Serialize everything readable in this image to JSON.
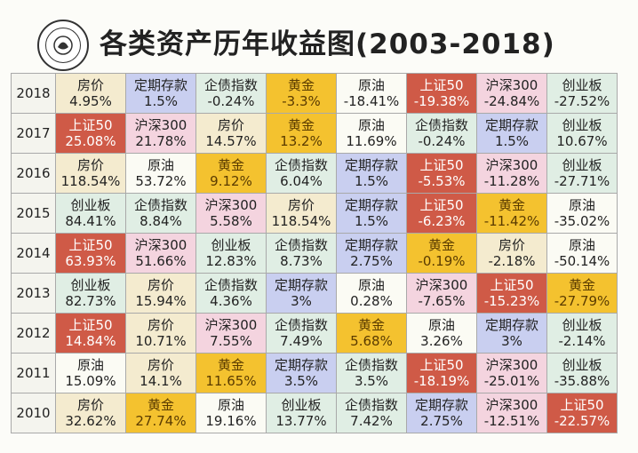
{
  "title": "各类资产历年收益图(2003-2018)",
  "assets_colors": {
    "上证50": "#cf5a47",
    "黄金": "#f4c22f",
    "定期存款": "#c9cff0",
    "沪深300": "#f4d4df",
    "原油": "#fbfbf4",
    "房价": "#f4ebcf",
    "企债指数": "#e0eee4",
    "创业板": "#e0eee4"
  },
  "chart_data": {
    "type": "table",
    "title": "各类资产历年收益图(2003-2018)",
    "rows": [
      {
        "year": "2018",
        "cells": [
          {
            "asset": "房价",
            "value": "4.95%"
          },
          {
            "asset": "定期存款",
            "value": "1.5%"
          },
          {
            "asset": "企债指数",
            "value": "-0.24%"
          },
          {
            "asset": "黄金",
            "value": "-3.3%"
          },
          {
            "asset": "原油",
            "value": "-18.41%"
          },
          {
            "asset": "上证50",
            "value": "-19.38%"
          },
          {
            "asset": "沪深300",
            "value": "-24.84%"
          },
          {
            "asset": "创业板",
            "value": "-27.52%"
          }
        ]
      },
      {
        "year": "2017",
        "cells": [
          {
            "asset": "上证50",
            "value": "25.08%"
          },
          {
            "asset": "沪深300",
            "value": "21.78%"
          },
          {
            "asset": "房价",
            "value": "14.57%"
          },
          {
            "asset": "黄金",
            "value": "13.2%"
          },
          {
            "asset": "原油",
            "value": "11.69%"
          },
          {
            "asset": "企债指数",
            "value": "-0.24%"
          },
          {
            "asset": "定期存款",
            "value": "1.5%"
          },
          {
            "asset": "创业板",
            "value": "10.67%"
          }
        ]
      },
      {
        "year": "2016",
        "cells": [
          {
            "asset": "房价",
            "value": "118.54%"
          },
          {
            "asset": "原油",
            "value": "53.72%"
          },
          {
            "asset": "黄金",
            "value": "9.12%"
          },
          {
            "asset": "企债指数",
            "value": "6.04%"
          },
          {
            "asset": "定期存款",
            "value": "1.5%"
          },
          {
            "asset": "上证50",
            "value": "-5.53%"
          },
          {
            "asset": "沪深300",
            "value": "-11.28%"
          },
          {
            "asset": "创业板",
            "value": "-27.71%"
          }
        ]
      },
      {
        "year": "2015",
        "cells": [
          {
            "asset": "创业板",
            "value": "84.41%"
          },
          {
            "asset": "企债指数",
            "value": "8.84%"
          },
          {
            "asset": "沪深300",
            "value": "5.58%"
          },
          {
            "asset": "房价",
            "value": "118.54%"
          },
          {
            "asset": "定期存款",
            "value": "1.5%"
          },
          {
            "asset": "上证50",
            "value": "-6.23%"
          },
          {
            "asset": "黄金",
            "value": "-11.42%"
          },
          {
            "asset": "原油",
            "value": "-35.02%"
          }
        ]
      },
      {
        "year": "2014",
        "cells": [
          {
            "asset": "上证50",
            "value": "63.93%"
          },
          {
            "asset": "沪深300",
            "value": "51.66%"
          },
          {
            "asset": "创业板",
            "value": "12.83%"
          },
          {
            "asset": "企债指数",
            "value": "8.73%"
          },
          {
            "asset": "定期存款",
            "value": "2.75%"
          },
          {
            "asset": "黄金",
            "value": "-0.19%"
          },
          {
            "asset": "房价",
            "value": "-2.18%"
          },
          {
            "asset": "原油",
            "value": "-50.14%"
          }
        ]
      },
      {
        "year": "2013",
        "cells": [
          {
            "asset": "创业板",
            "value": "82.73%"
          },
          {
            "asset": "房价",
            "value": "15.94%"
          },
          {
            "asset": "企债指数",
            "value": "4.36%"
          },
          {
            "asset": "定期存款",
            "value": "3%"
          },
          {
            "asset": "原油",
            "value": "0.28%"
          },
          {
            "asset": "沪深300",
            "value": "-7.65%"
          },
          {
            "asset": "上证50",
            "value": "-15.23%"
          },
          {
            "asset": "黄金",
            "value": "-27.79%"
          }
        ]
      },
      {
        "year": "2012",
        "cells": [
          {
            "asset": "上证50",
            "value": "14.84%"
          },
          {
            "asset": "房价",
            "value": "10.71%"
          },
          {
            "asset": "沪深300",
            "value": "7.55%"
          },
          {
            "asset": "企债指数",
            "value": "7.49%"
          },
          {
            "asset": "黄金",
            "value": "5.68%"
          },
          {
            "asset": "原油",
            "value": "3.26%"
          },
          {
            "asset": "定期存款",
            "value": "3%"
          },
          {
            "asset": "创业板",
            "value": "-2.14%"
          }
        ]
      },
      {
        "year": "2011",
        "cells": [
          {
            "asset": "原油",
            "value": "15.09%"
          },
          {
            "asset": "房价",
            "value": "14.1%"
          },
          {
            "asset": "黄金",
            "value": "11.65%"
          },
          {
            "asset": "定期存款",
            "value": "3.5%"
          },
          {
            "asset": "企债指数",
            "value": "3.5%"
          },
          {
            "asset": "上证50",
            "value": "-18.19%"
          },
          {
            "asset": "沪深300",
            "value": "-25.01%"
          },
          {
            "asset": "创业板",
            "value": "-35.88%"
          }
        ]
      },
      {
        "year": "2010",
        "cells": [
          {
            "asset": "房价",
            "value": "32.62%"
          },
          {
            "asset": "黄金",
            "value": "27.74%"
          },
          {
            "asset": "原油",
            "value": "19.16%"
          },
          {
            "asset": "创业板",
            "value": "13.77%"
          },
          {
            "asset": "企债指数",
            "value": "7.42%"
          },
          {
            "asset": "定期存款",
            "value": "2.75%"
          },
          {
            "asset": "沪深300",
            "value": "-12.51%"
          },
          {
            "asset": "上证50",
            "value": "-22.57%"
          }
        ]
      }
    ]
  }
}
